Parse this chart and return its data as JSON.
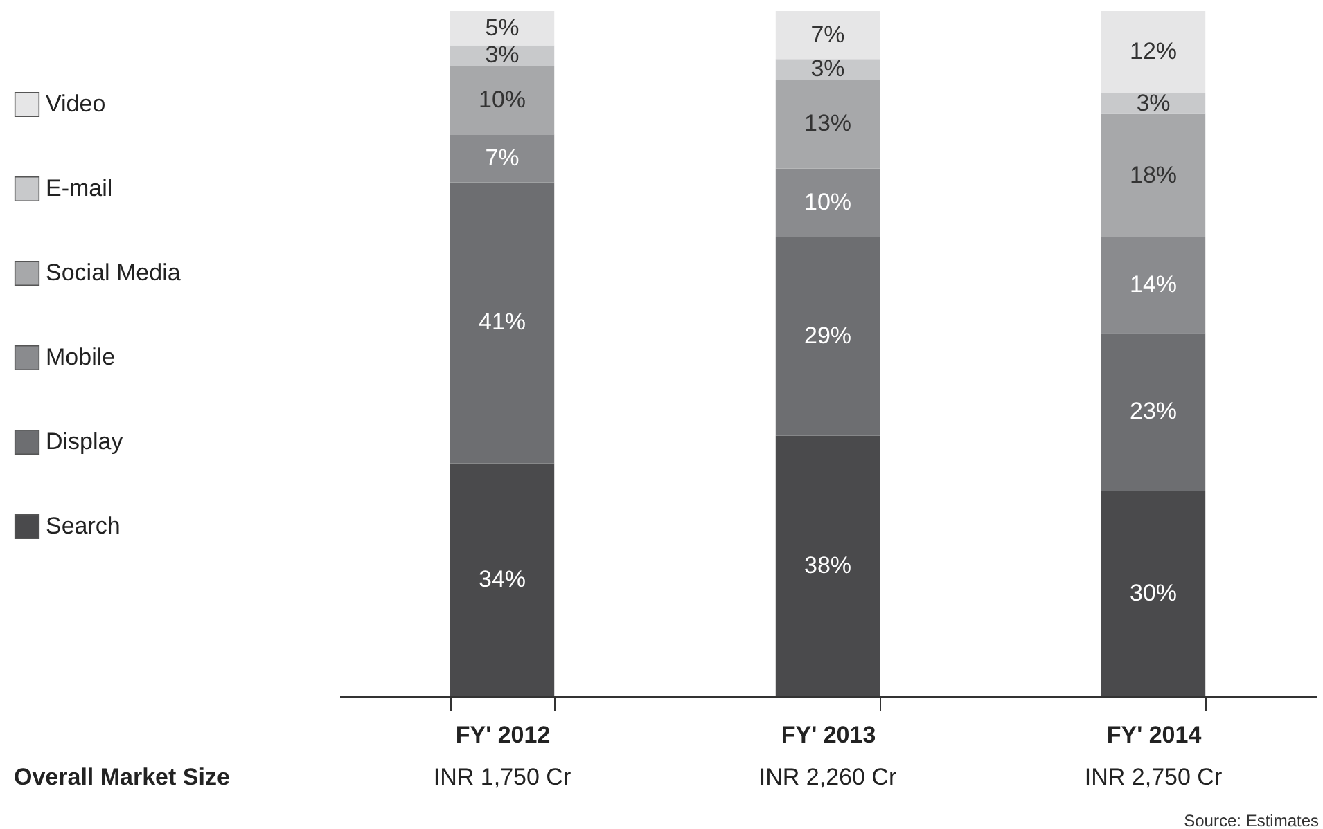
{
  "chart_data": {
    "type": "bar",
    "stacked": true,
    "categories": [
      "FY' 2012",
      "FY' 2013",
      "FY' 2014"
    ],
    "series": [
      {
        "name": "Search",
        "color": "#4a4a4c",
        "values": [
          34,
          38,
          30
        ],
        "value_labels": [
          "34%",
          "38%",
          "30%"
        ]
      },
      {
        "name": "Display",
        "color": "#6d6e71",
        "values": [
          41,
          29,
          23
        ],
        "value_labels": [
          "41%",
          "29%",
          "23%"
        ]
      },
      {
        "name": "Mobile",
        "color": "#8a8b8e",
        "values": [
          7,
          10,
          14
        ],
        "value_labels": [
          "7%",
          "10%",
          "14%"
        ]
      },
      {
        "name": "Social Media",
        "color": "#a7a8aa",
        "values": [
          10,
          13,
          18
        ],
        "value_labels": [
          "10%",
          "13%",
          "18%"
        ]
      },
      {
        "name": "E-mail",
        "color": "#c8c9cb",
        "values": [
          3,
          3,
          3
        ],
        "value_labels": [
          "3%",
          "3%",
          "3%"
        ]
      },
      {
        "name": "Video",
        "color": "#e6e6e7",
        "values": [
          5,
          7,
          12
        ],
        "value_labels": [
          "5%",
          "7%",
          "12%"
        ]
      }
    ],
    "ylim": [
      0,
      100
    ],
    "tick_labels": "x",
    "legend": "left",
    "grid": false,
    "annotations": [
      "Overall Market Size",
      "INR 1,750 Cr",
      "INR 2,260 Cr",
      "INR 2,750 Cr",
      "Source: Estimates"
    ]
  }
}
